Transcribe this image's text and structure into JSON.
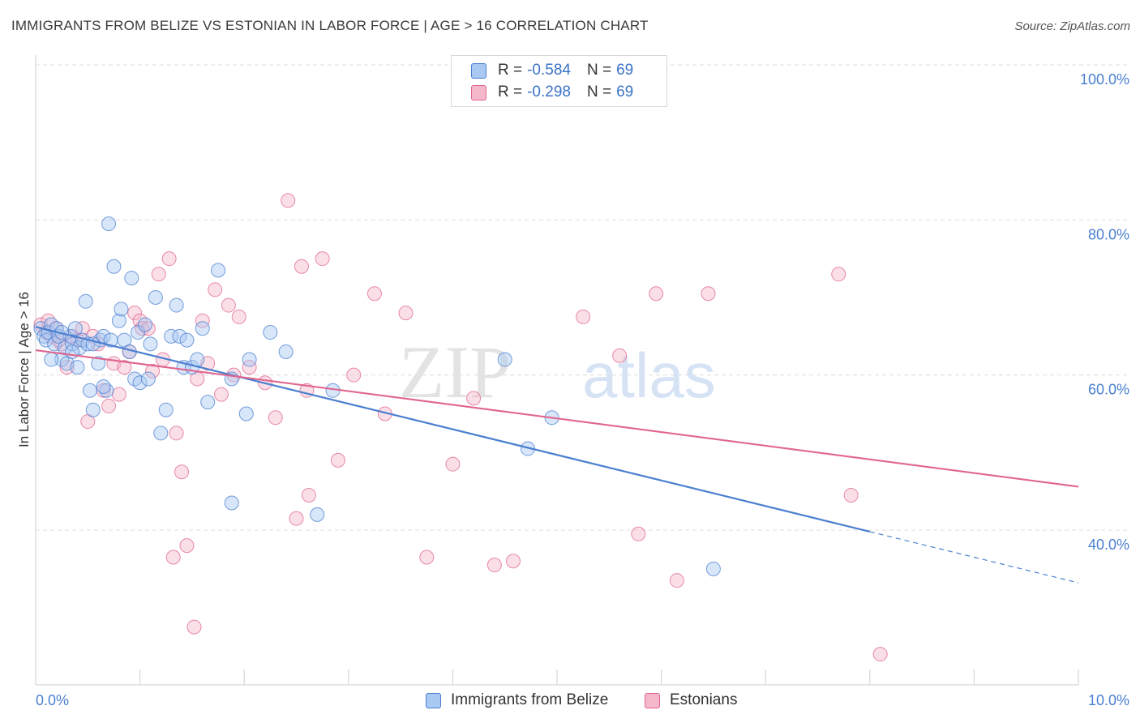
{
  "title": "IMMIGRANTS FROM BELIZE VS ESTONIAN IN LABOR FORCE | AGE > 16 CORRELATION CHART",
  "source": "Source: ZipAtlas.com",
  "watermark": {
    "zip": "ZIP",
    "atlas": "atlas"
  },
  "legend": {
    "rows": [
      {
        "r_label": "R =",
        "r_value": "-0.584",
        "n_label": "N =",
        "n_value": "69"
      },
      {
        "r_label": "R =",
        "r_value": "-0.298",
        "n_label": "N =",
        "n_value": "69"
      }
    ]
  },
  "chart_data": {
    "type": "scatter",
    "ylabel": "In Labor Force | Age > 16",
    "x_ticks": [
      "0.0%",
      "10.0%"
    ],
    "y_ticks": [
      "100.0%",
      "80.0%",
      "60.0%",
      "40.0%"
    ],
    "xlim": [
      0,
      10
    ],
    "ylim": [
      20,
      102
    ],
    "grid": true,
    "legend_position": "bottom",
    "series": [
      {
        "name": "Immigrants from Belize",
        "color": "#4a7fd0",
        "fill": "#a9c8f2",
        "trend": {
          "x0": 0.0,
          "y0": 66.2,
          "x1": 8.0,
          "y1": 39.8,
          "dash_to_x": 10.0,
          "dash_to_y": 33.2
        },
        "points": [
          [
            0.05,
            66.0
          ],
          [
            0.08,
            65.0
          ],
          [
            0.1,
            64.5
          ],
          [
            0.12,
            65.5
          ],
          [
            0.15,
            66.5
          ],
          [
            0.18,
            64.0
          ],
          [
            0.2,
            66.0
          ],
          [
            0.22,
            65.0
          ],
          [
            0.25,
            62.0
          ],
          [
            0.28,
            63.5
          ],
          [
            0.3,
            61.5
          ],
          [
            0.33,
            65.0
          ],
          [
            0.35,
            64.0
          ],
          [
            0.38,
            66.0
          ],
          [
            0.4,
            61.0
          ],
          [
            0.42,
            63.5
          ],
          [
            0.45,
            64.5
          ],
          [
            0.48,
            69.5
          ],
          [
            0.5,
            64.0
          ],
          [
            0.52,
            58.0
          ],
          [
            0.55,
            55.5
          ],
          [
            0.6,
            61.5
          ],
          [
            0.62,
            64.5
          ],
          [
            0.65,
            65.0
          ],
          [
            0.68,
            58.0
          ],
          [
            0.72,
            64.5
          ],
          [
            0.75,
            74.0
          ],
          [
            0.8,
            67.0
          ],
          [
            0.82,
            68.5
          ],
          [
            0.85,
            64.5
          ],
          [
            0.9,
            63.0
          ],
          [
            0.92,
            72.5
          ],
          [
            0.95,
            59.5
          ],
          [
            0.98,
            65.5
          ],
          [
            1.0,
            59.0
          ],
          [
            1.05,
            66.5
          ],
          [
            1.08,
            59.5
          ],
          [
            1.1,
            64.0
          ],
          [
            1.15,
            70.0
          ],
          [
            1.2,
            52.5
          ],
          [
            1.25,
            55.5
          ],
          [
            1.3,
            65.0
          ],
          [
            1.35,
            69.0
          ],
          [
            1.38,
            65.0
          ],
          [
            1.42,
            61.0
          ],
          [
            1.45,
            64.5
          ],
          [
            1.5,
            61.0
          ],
          [
            1.55,
            62.0
          ],
          [
            1.6,
            66.0
          ],
          [
            1.65,
            56.5
          ],
          [
            1.75,
            73.5
          ],
          [
            1.88,
            59.5
          ],
          [
            1.88,
            43.5
          ],
          [
            2.02,
            55.0
          ],
          [
            2.05,
            62.0
          ],
          [
            2.25,
            65.5
          ],
          [
            2.4,
            63.0
          ],
          [
            2.7,
            42.0
          ],
          [
            2.85,
            58.0
          ],
          [
            4.5,
            62.0
          ],
          [
            4.72,
            50.5
          ],
          [
            4.95,
            54.5
          ],
          [
            6.5,
            35.0
          ],
          [
            0.7,
            79.5
          ],
          [
            0.15,
            62.0
          ],
          [
            0.25,
            65.5
          ],
          [
            0.35,
            63.0
          ],
          [
            0.55,
            64.0
          ],
          [
            0.65,
            58.5
          ]
        ]
      },
      {
        "name": "Estonians",
        "color": "#e0668f",
        "fill": "#f5b8ca",
        "trend": {
          "x0": 0.0,
          "y0": 63.2,
          "x1": 10.0,
          "y1": 45.6
        },
        "points": [
          [
            0.05,
            66.5
          ],
          [
            0.1,
            65.5
          ],
          [
            0.15,
            65.0
          ],
          [
            0.2,
            66.0
          ],
          [
            0.25,
            64.0
          ],
          [
            0.3,
            61.0
          ],
          [
            0.35,
            65.0
          ],
          [
            0.4,
            64.5
          ],
          [
            0.45,
            66.0
          ],
          [
            0.5,
            54.0
          ],
          [
            0.55,
            65.0
          ],
          [
            0.6,
            64.0
          ],
          [
            0.65,
            58.0
          ],
          [
            0.7,
            56.0
          ],
          [
            0.75,
            61.5
          ],
          [
            0.8,
            57.5
          ],
          [
            0.85,
            61.0
          ],
          [
            0.9,
            63.0
          ],
          [
            0.95,
            68.0
          ],
          [
            1.0,
            67.0
          ],
          [
            1.02,
            66.0
          ],
          [
            1.08,
            66.0
          ],
          [
            1.12,
            60.5
          ],
          [
            1.18,
            73.0
          ],
          [
            1.22,
            62.0
          ],
          [
            1.28,
            75.0
          ],
          [
            1.32,
            36.5
          ],
          [
            1.35,
            52.5
          ],
          [
            1.4,
            47.5
          ],
          [
            1.45,
            38.0
          ],
          [
            1.52,
            27.5
          ],
          [
            1.55,
            59.5
          ],
          [
            1.6,
            67.0
          ],
          [
            1.65,
            61.5
          ],
          [
            1.72,
            71.0
          ],
          [
            1.78,
            57.5
          ],
          [
            1.85,
            69.0
          ],
          [
            1.9,
            60.0
          ],
          [
            1.95,
            67.5
          ],
          [
            2.05,
            61.0
          ],
          [
            2.2,
            59.0
          ],
          [
            2.3,
            54.5
          ],
          [
            2.42,
            82.5
          ],
          [
            2.5,
            41.5
          ],
          [
            2.55,
            74.0
          ],
          [
            2.6,
            58.0
          ],
          [
            2.62,
            44.5
          ],
          [
            2.75,
            75.0
          ],
          [
            2.9,
            49.0
          ],
          [
            3.05,
            60.0
          ],
          [
            3.25,
            70.5
          ],
          [
            3.35,
            55.0
          ],
          [
            3.55,
            68.0
          ],
          [
            3.75,
            36.5
          ],
          [
            4.0,
            48.5
          ],
          [
            4.2,
            57.0
          ],
          [
            4.4,
            35.5
          ],
          [
            4.58,
            36.0
          ],
          [
            5.25,
            67.5
          ],
          [
            5.6,
            62.5
          ],
          [
            5.78,
            39.5
          ],
          [
            5.95,
            70.5
          ],
          [
            6.15,
            33.5
          ],
          [
            6.45,
            70.5
          ],
          [
            7.7,
            73.0
          ],
          [
            7.82,
            44.5
          ],
          [
            8.1,
            24.0
          ],
          [
            0.12,
            67.0
          ],
          [
            0.22,
            64.5
          ]
        ]
      }
    ]
  }
}
